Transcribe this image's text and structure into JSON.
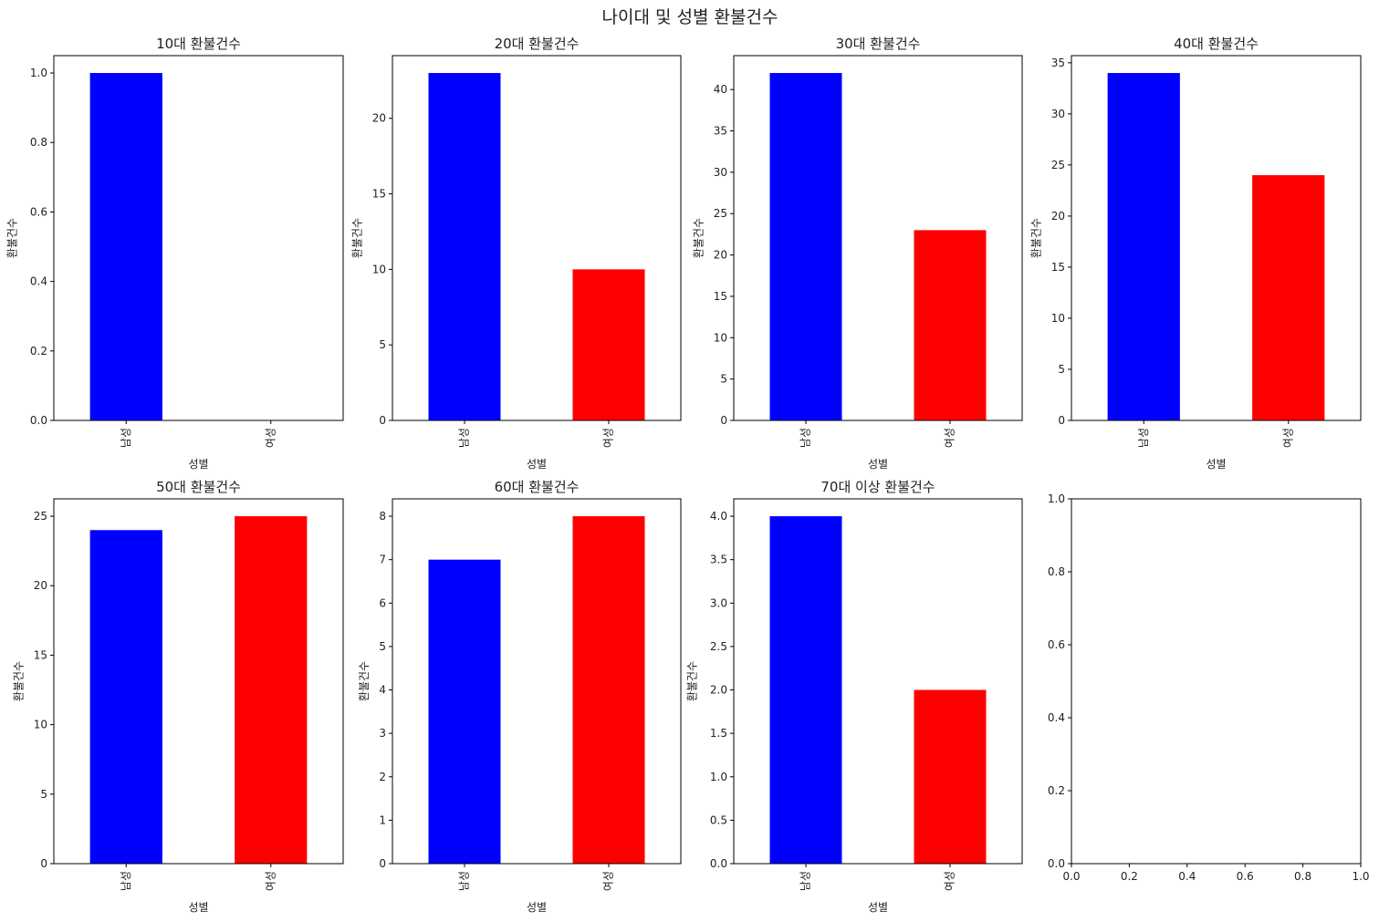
{
  "figure_title": "나이대 및 성별 환불건수",
  "colors": {
    "male": "#0000ff",
    "female": "#ff0000",
    "axis": "#000000",
    "text": "#222222"
  },
  "chart_data": [
    {
      "type": "bar",
      "title": "10대 환불건수",
      "categories": [
        "남성",
        "여성"
      ],
      "values": [
        1,
        0
      ],
      "xlabel": "성별",
      "ylabel": "환불건수",
      "ylim": [
        0,
        1.05
      ],
      "yticks": [
        "0.0",
        "0.2",
        "0.4",
        "0.6",
        "0.8",
        "1.0"
      ]
    },
    {
      "type": "bar",
      "title": "20대 환불건수",
      "categories": [
        "남성",
        "여성"
      ],
      "values": [
        23,
        10
      ],
      "xlabel": "성별",
      "ylabel": "환불건수",
      "ylim": [
        0,
        24.15
      ],
      "yticks": [
        "0",
        "5",
        "10",
        "15",
        "20"
      ]
    },
    {
      "type": "bar",
      "title": "30대 환불건수",
      "categories": [
        "남성",
        "여성"
      ],
      "values": [
        42,
        23
      ],
      "xlabel": "성별",
      "ylabel": "환불건수",
      "ylim": [
        0,
        44.1
      ],
      "yticks": [
        "0",
        "5",
        "10",
        "15",
        "20",
        "25",
        "30",
        "35",
        "40"
      ]
    },
    {
      "type": "bar",
      "title": "40대 환불건수",
      "categories": [
        "남성",
        "여성"
      ],
      "values": [
        34,
        24
      ],
      "xlabel": "성별",
      "ylabel": "환불건수",
      "ylim": [
        0,
        35.7
      ],
      "yticks": [
        "0",
        "5",
        "10",
        "15",
        "20",
        "25",
        "30",
        "35"
      ]
    },
    {
      "type": "bar",
      "title": "50대 환불건수",
      "categories": [
        "남성",
        "여성"
      ],
      "values": [
        24,
        25
      ],
      "xlabel": "성별",
      "ylabel": "환불건수",
      "ylim": [
        0,
        26.25
      ],
      "yticks": [
        "0",
        "5",
        "10",
        "15",
        "20",
        "25"
      ]
    },
    {
      "type": "bar",
      "title": "60대 환불건수",
      "categories": [
        "남성",
        "여성"
      ],
      "values": [
        7,
        8
      ],
      "xlabel": "성별",
      "ylabel": "환불건수",
      "ylim": [
        0,
        8.4
      ],
      "yticks": [
        "0",
        "1",
        "2",
        "3",
        "4",
        "5",
        "6",
        "7",
        "8"
      ]
    },
    {
      "type": "bar",
      "title": "70대 이상 환불건수",
      "categories": [
        "남성",
        "여성"
      ],
      "values": [
        4,
        2
      ],
      "xlabel": "성별",
      "ylabel": "환불건수",
      "ylim": [
        0,
        4.2
      ],
      "yticks": [
        "0.0",
        "0.5",
        "1.0",
        "1.5",
        "2.0",
        "2.5",
        "3.0",
        "3.5",
        "4.0"
      ]
    },
    {
      "type": "empty",
      "title": "",
      "categories": [],
      "values": [],
      "xlabel": "",
      "ylabel": "",
      "xlim": [
        0,
        1
      ],
      "ylim": [
        0,
        1
      ],
      "xticks": [
        "0.0",
        "0.2",
        "0.4",
        "0.6",
        "0.8",
        "1.0"
      ],
      "yticks": [
        "0.0",
        "0.2",
        "0.4",
        "0.6",
        "0.8",
        "1.0"
      ]
    }
  ]
}
